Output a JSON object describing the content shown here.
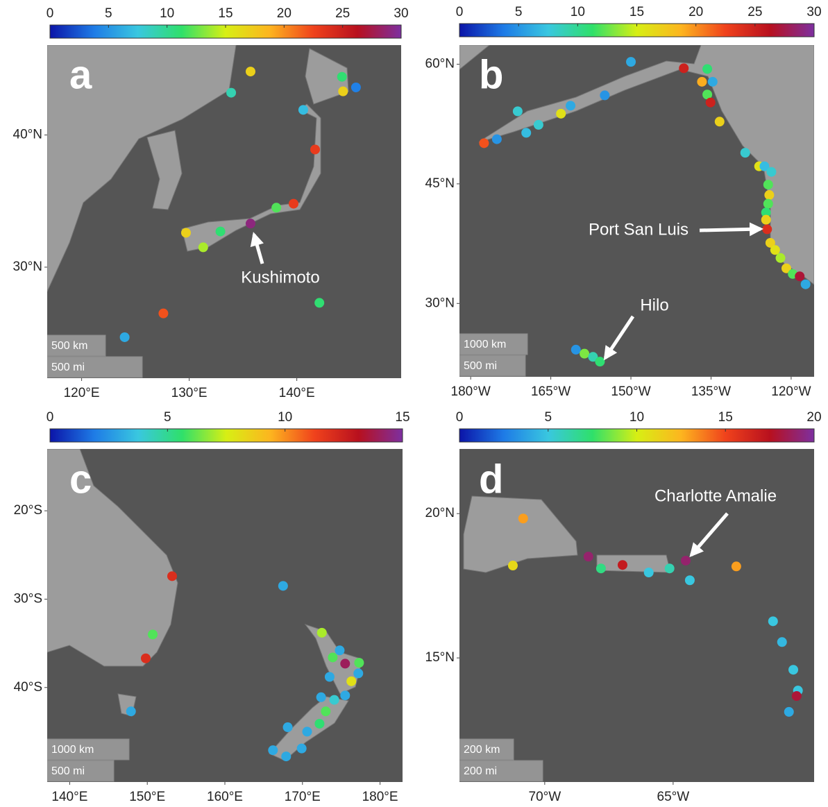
{
  "chart_data": [
    {
      "type": "scatter",
      "panel_label": "a",
      "x": [
        135.7,
        133.9,
        144.2,
        144.3,
        145.5,
        140.6,
        141.7,
        139.7,
        138.1,
        135.7,
        132.9,
        129.7,
        131.3,
        142.1,
        127.6,
        124.0
      ],
      "y": [
        44.8,
        43.2,
        44.4,
        43.3,
        43.6,
        41.9,
        38.9,
        34.8,
        34.5,
        33.3,
        32.7,
        32.6,
        31.5,
        27.3,
        26.5,
        24.7
      ],
      "c": [
        17,
        9,
        11,
        17,
        4,
        7,
        23,
        23,
        12,
        29,
        11,
        17,
        14,
        11,
        22,
        6
      ],
      "xlim": [
        116.8,
        149.7
      ],
      "ylim": [
        21.6,
        46.8
      ],
      "xticks": [
        {
          "value": 120,
          "label": "120°E"
        },
        {
          "value": 130,
          "label": "130°E"
        },
        {
          "value": 140,
          "label": "140°E"
        }
      ],
      "yticks": [
        {
          "value": 30,
          "label": "30°N"
        },
        {
          "value": 40,
          "label": "40°N"
        }
      ],
      "clim": [
        0,
        30
      ],
      "cticks": [
        0,
        5,
        10,
        15,
        20,
        25,
        30
      ],
      "colormap": [
        "#0b14a8",
        "#1e7be6",
        "#39c7e0",
        "#2fe06a",
        "#d7ef14",
        "#fdb51f",
        "#f0421c",
        "#b8101e",
        "#7d2fa0"
      ],
      "annotations": [
        "Kushimoto"
      ],
      "scale_labels": [
        "500 km",
        "500 mi"
      ]
    },
    {
      "type": "scatter",
      "panel_label": "b",
      "x": [
        -150.0,
        -140.1,
        -135.7,
        -136.7,
        -134.7,
        -135.7,
        -135.1,
        -154.9,
        -171.2,
        -161.3,
        -163.1,
        -167.3,
        -169.6,
        -175.1,
        -177.5,
        -133.4,
        -128.6,
        -126.0,
        -125.0,
        -123.7,
        -124.3,
        -124.1,
        -124.3,
        -124.7,
        -124.7,
        -124.5,
        -123.9,
        -123.0,
        -122.0,
        -120.9,
        -119.7,
        -118.4,
        -117.3,
        -160.3,
        -158.7,
        -157.1,
        -155.8
      ],
      "y": [
        60.3,
        59.5,
        59.4,
        57.8,
        57.8,
        56.2,
        55.2,
        56.1,
        54.1,
        54.8,
        53.8,
        52.4,
        51.4,
        50.6,
        50.1,
        52.8,
        48.9,
        47.2,
        47.2,
        46.5,
        44.9,
        43.6,
        42.5,
        41.4,
        40.5,
        39.3,
        37.6,
        36.7,
        35.7,
        34.4,
        33.7,
        33.4,
        32.4,
        24.2,
        23.7,
        23.3,
        22.7
      ],
      "c": [
        6,
        25,
        11,
        19,
        6,
        12,
        25,
        5,
        8,
        6,
        16,
        8,
        7,
        5,
        22,
        17,
        8,
        16,
        7,
        8,
        12,
        17,
        12,
        11,
        17,
        24,
        17,
        16,
        14,
        17,
        12,
        27,
        6,
        5,
        13,
        9,
        11
      ],
      "xlim": [
        -182.1,
        -115.7
      ],
      "ylim": [
        20.8,
        62.4
      ],
      "xticks": [
        {
          "value": -180,
          "label": "180°W"
        },
        {
          "value": -165,
          "label": "165°W"
        },
        {
          "value": -150,
          "label": "150°W"
        },
        {
          "value": -135,
          "label": "135°W"
        },
        {
          "value": -120,
          "label": "120°W"
        }
      ],
      "yticks": [
        {
          "value": 30,
          "label": "30°N"
        },
        {
          "value": 45,
          "label": "45°N"
        },
        {
          "value": 60,
          "label": "60°N"
        }
      ],
      "clim": [
        0,
        30
      ],
      "cticks": [
        0,
        5,
        10,
        15,
        20,
        25,
        30
      ],
      "colormap": [
        "#0b14a8",
        "#1e7be6",
        "#39c7e0",
        "#2fe06a",
        "#d7ef14",
        "#fdb51f",
        "#f0421c",
        "#b8101e",
        "#7d2fa0"
      ],
      "annotations": [
        "Port San Luis",
        "Hilo"
      ],
      "scale_labels": [
        "1000 km",
        "500 mi"
      ]
    },
    {
      "type": "scatter",
      "panel_label": "c",
      "x": [
        153.2,
        167.5,
        150.7,
        149.8,
        147.9,
        172.5,
        173.9,
        174.8,
        175.5,
        177.3,
        177.2,
        173.5,
        176.3,
        175.5,
        172.4,
        174.1,
        173.0,
        172.2,
        170.6,
        168.1,
        166.2,
        167.9,
        169.9
      ],
      "y": [
        -27.4,
        -28.5,
        -34.0,
        -36.7,
        -42.7,
        -33.8,
        -36.6,
        -35.8,
        -37.3,
        -37.2,
        -38.4,
        -38.8,
        -39.3,
        -40.9,
        -41.1,
        -41.4,
        -42.7,
        -44.1,
        -45.0,
        -44.5,
        -47.1,
        -47.8,
        -46.9
      ],
      "c": [
        12,
        3,
        6,
        12,
        3,
        7,
        6,
        3,
        14,
        6,
        3,
        3,
        8,
        3,
        3,
        4,
        6,
        5.5,
        3,
        3,
        3,
        3,
        3
      ],
      "xlim": [
        137.1,
        182.9
      ],
      "ylim": [
        -50.7,
        -13.0
      ],
      "xticks": [
        {
          "value": 140,
          "label": "140°E"
        },
        {
          "value": 150,
          "label": "150°E"
        },
        {
          "value": 160,
          "label": "160°E"
        },
        {
          "value": 170,
          "label": "170°E"
        },
        {
          "value": 180,
          "label": "180°E"
        }
      ],
      "yticks": [
        {
          "value": -40,
          "label": "40°S"
        },
        {
          "value": -30,
          "label": "30°S"
        },
        {
          "value": -20,
          "label": "20°S"
        }
      ],
      "clim": [
        0,
        15
      ],
      "cticks": [
        0,
        5,
        10,
        15
      ],
      "colormap": [
        "#0b14a8",
        "#1e7be6",
        "#39c7e0",
        "#2fe06a",
        "#d7ef14",
        "#fdb51f",
        "#f0421c",
        "#b8101e",
        "#7d2fa0"
      ],
      "annotations": [],
      "scale_labels": [
        "1000 km",
        "500 mi"
      ]
    },
    {
      "type": "scatter",
      "panel_label": "d",
      "x": [
        -70.84,
        -71.24,
        -68.3,
        -67.81,
        -66.97,
        -65.95,
        -65.14,
        -64.51,
        -64.35,
        -62.54,
        -61.11,
        -60.76,
        -60.32,
        -60.14,
        -60.19,
        -60.49
      ],
      "y": [
        19.83,
        18.2,
        18.51,
        18.1,
        18.22,
        17.96,
        18.1,
        18.37,
        17.69,
        18.17,
        16.27,
        15.55,
        14.59,
        13.87,
        13.68,
        13.13
      ],
      "c": [
        13,
        11,
        19,
        7,
        17,
        5,
        6,
        19,
        5,
        13,
        5,
        4.5,
        5,
        5,
        18,
        4
      ],
      "xlim": [
        -73.32,
        -59.51
      ],
      "ylim": [
        10.7,
        22.24
      ],
      "xticks": [
        {
          "value": -70,
          "label": "70°W"
        },
        {
          "value": -65,
          "label": "65°W"
        }
      ],
      "yticks": [
        {
          "value": 15,
          "label": "15°N"
        },
        {
          "value": 20,
          "label": "20°N"
        }
      ],
      "clim": [
        0,
        20
      ],
      "cticks": [
        0,
        5,
        10,
        15,
        20
      ],
      "colormap": [
        "#0b14a8",
        "#1e7be6",
        "#39c7e0",
        "#2fe06a",
        "#d7ef14",
        "#fdb51f",
        "#f0421c",
        "#b8101e",
        "#7d2fa0"
      ],
      "annotations": [
        "Charlotte Amalie"
      ],
      "scale_labels": [
        "200 km",
        "200 mi"
      ]
    }
  ]
}
